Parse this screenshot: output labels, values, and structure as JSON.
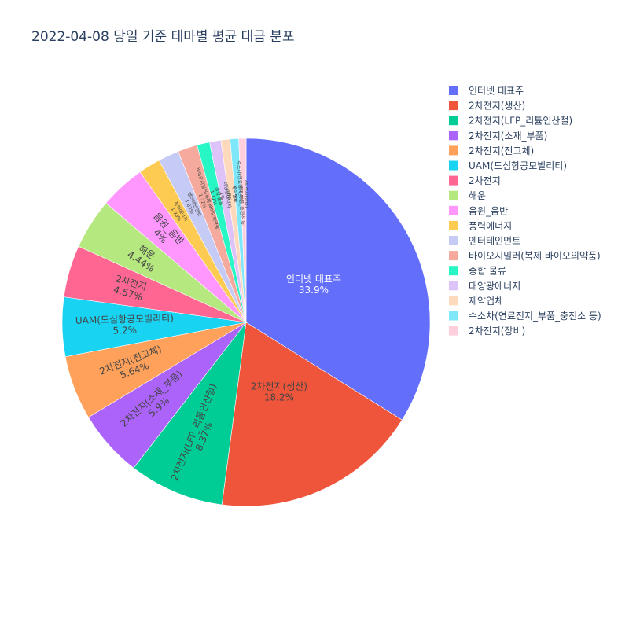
{
  "chart_data": {
    "type": "pie",
    "title": "2022-04-08 당일 기준 테마별 평균 대금 분포",
    "legend_position": "right",
    "slices": [
      {
        "label": "인터넷 대표주",
        "value": 33.9,
        "text": "33.9%",
        "color": "#636efa"
      },
      {
        "label": "2차전지(생산)",
        "value": 18.2,
        "text": "18.2%",
        "color": "#EF553B"
      },
      {
        "label": "2차전지(LFP_리튬인산철)",
        "value": 8.37,
        "text": "8.37%",
        "color": "#00cc96"
      },
      {
        "label": "2차전지(소재_부품)",
        "value": 5.9,
        "text": "5.9%",
        "color": "#ab63fa"
      },
      {
        "label": "2차전지(전고체)",
        "value": 5.64,
        "text": "5.64%",
        "color": "#FFA15A"
      },
      {
        "label": "UAM(도심항공모빌리티)",
        "value": 5.2,
        "text": "5.2%",
        "color": "#19d3f3"
      },
      {
        "label": "2차전지",
        "value": 4.57,
        "text": "4.57%",
        "color": "#FF6692"
      },
      {
        "label": "해운",
        "value": 4.44,
        "text": "4.44%",
        "color": "#B6E880"
      },
      {
        "label": "음원_음반",
        "value": 4.0,
        "text": "4%",
        "color": "#FF97FF"
      },
      {
        "label": "풍력에너지",
        "value": 1.93,
        "text": "1.93%",
        "color": "#FECB52"
      },
      {
        "label": "엔터테인먼트",
        "value": 1.83,
        "text": "1.83%",
        "color": "#c6cbf6"
      },
      {
        "label": "바이오시밀러(복제 바이오의약품)",
        "value": 1.72,
        "text": "1.72%",
        "color": "#f5aa9d"
      },
      {
        "label": "종합 물류",
        "value": 1.11,
        "text": "1.11%",
        "color": "#27f6c5"
      },
      {
        "label": "태양광에너지",
        "value": 1.0,
        "text": "1%",
        "color": "#dec3f9"
      },
      {
        "label": "제약업체",
        "value": 0.8,
        "text": "0.8%",
        "color": "#ffd9bc"
      },
      {
        "label": "수소차(연료전지_부품_충전소 등)",
        "value": 0.75,
        "text": "0.75%",
        "color": "#7ee7f9"
      },
      {
        "label": "2차전지(장비)",
        "value": 0.64,
        "text": "0.64%",
        "color": "#ffcfdd"
      }
    ]
  }
}
